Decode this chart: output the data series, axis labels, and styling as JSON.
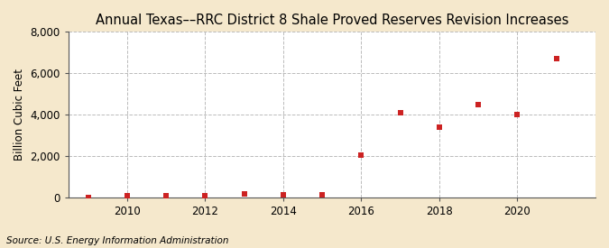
{
  "title": "Annual Texas––RRC District 8 Shale Proved Reserves Revision Increases",
  "ylabel": "Billion Cubic Feet",
  "source": "Source: U.S. Energy Information Administration",
  "background_color": "#f5e8cc",
  "plot_background_color": "#ffffff",
  "marker_color": "#cc2222",
  "years": [
    2009,
    2010,
    2011,
    2012,
    2013,
    2014,
    2015,
    2016,
    2017,
    2018,
    2019,
    2020,
    2021
  ],
  "values": [
    5,
    55,
    60,
    55,
    160,
    110,
    100,
    2050,
    4100,
    3400,
    4500,
    4000,
    6700
  ],
  "ylim": [
    0,
    8000
  ],
  "yticks": [
    0,
    2000,
    4000,
    6000,
    8000
  ],
  "xlim": [
    2008.5,
    2022
  ],
  "xticks": [
    2010,
    2012,
    2014,
    2016,
    2018,
    2020
  ],
  "grid_color": "#bbbbbb",
  "title_fontsize": 10.5,
  "label_fontsize": 8.5,
  "tick_fontsize": 8.5,
  "source_fontsize": 7.5,
  "marker_size": 15
}
